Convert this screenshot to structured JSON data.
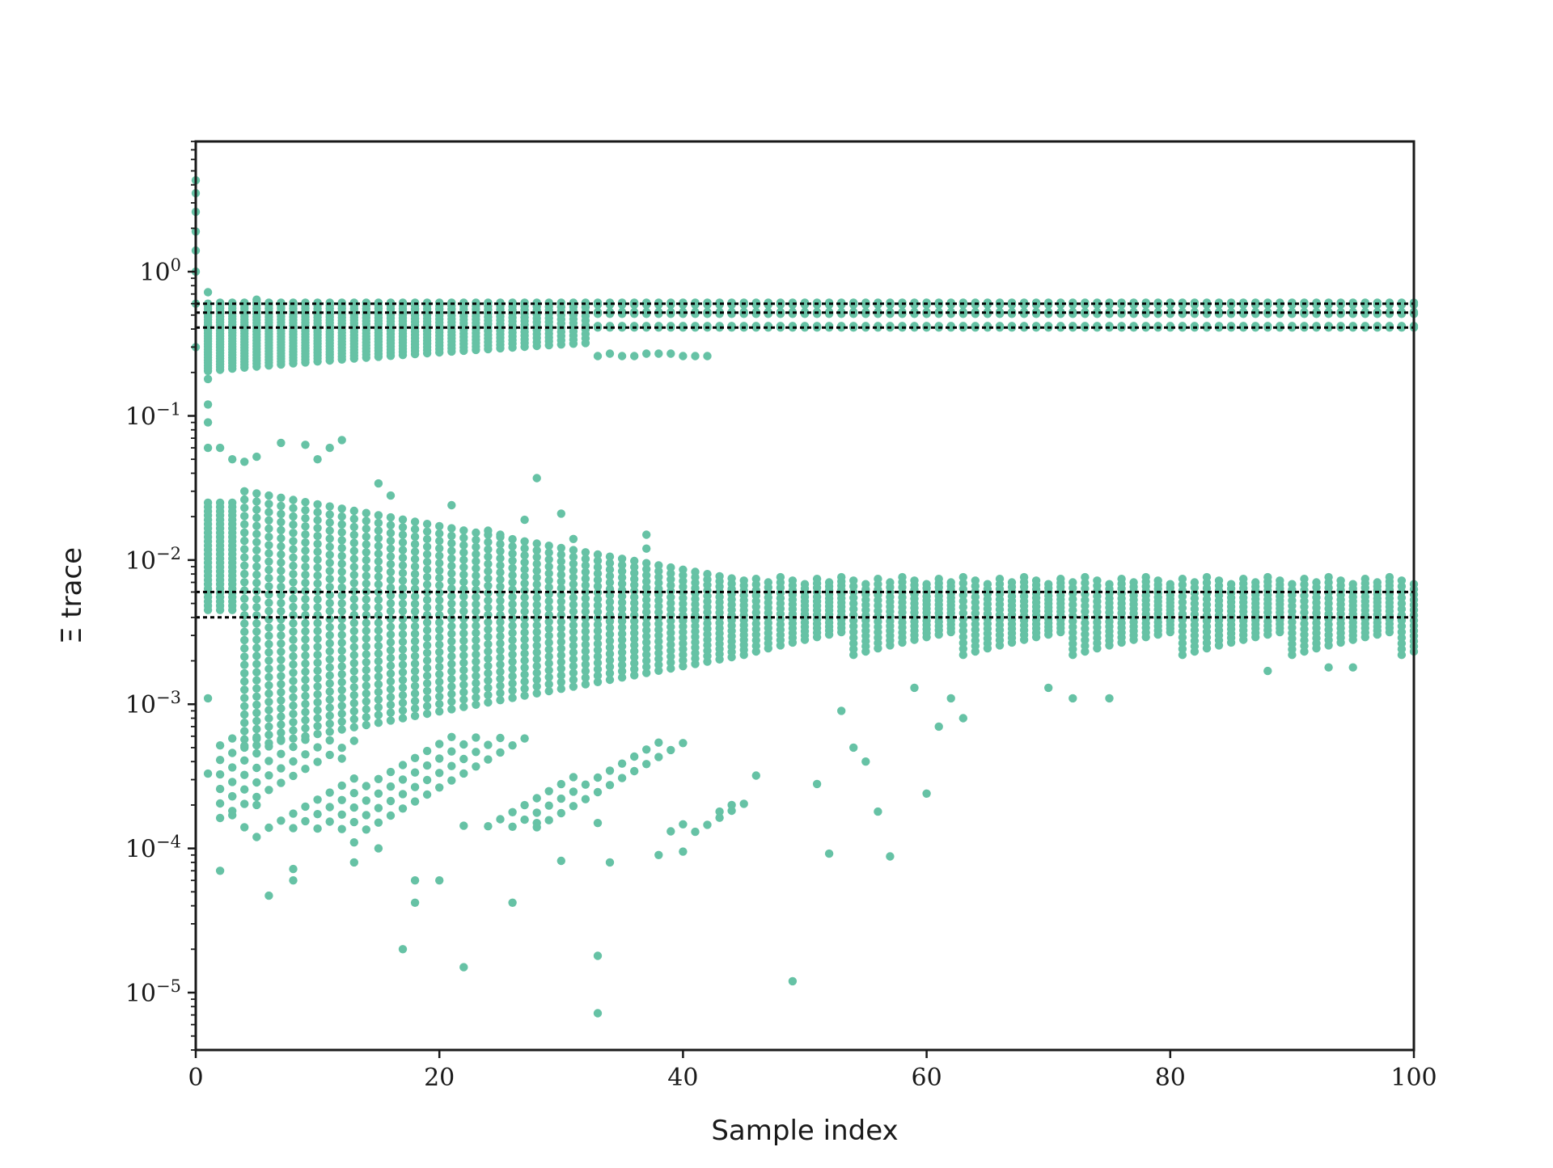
{
  "chart_data": {
    "type": "scatter",
    "xlabel": "Sample index",
    "ylabel": "Ξ trace",
    "xlim": [
      0,
      100
    ],
    "ylim": [
      4e-06,
      8
    ],
    "yscale": "log",
    "grid": false,
    "legend": "none",
    "marker_color": "#66c2a5",
    "reference_line_color": "#000000",
    "xticks": [
      {
        "value": 0,
        "label": "0"
      },
      {
        "value": 20,
        "label": "20"
      },
      {
        "value": 40,
        "label": "40"
      },
      {
        "value": 60,
        "label": "60"
      },
      {
        "value": 80,
        "label": "80"
      },
      {
        "value": 100,
        "label": "100"
      }
    ],
    "yticks": [
      {
        "value": 1,
        "base": "10",
        "exp": "0"
      },
      {
        "value": 0.1,
        "base": "10",
        "exp": "−1"
      },
      {
        "value": 0.01,
        "base": "10",
        "exp": "−2"
      },
      {
        "value": 0.001,
        "base": "10",
        "exp": "−3"
      },
      {
        "value": 0.0001,
        "base": "10",
        "exp": "−4"
      },
      {
        "value": 1e-05,
        "base": "10",
        "exp": "−5"
      }
    ],
    "reference_lines": [
      0.6,
      0.52,
      0.41,
      0.006,
      0.004
    ],
    "series": [
      {
        "description": "upper band envelope per sample index",
        "x_range": [
          1,
          100
        ],
        "points": [
          [
            0,
            4.3
          ],
          [
            0,
            3.5
          ],
          [
            0,
            2.6
          ],
          [
            0,
            1.9
          ],
          [
            0,
            1.4
          ],
          [
            0,
            1.0
          ],
          [
            0,
            0.6
          ],
          [
            0,
            0.3
          ],
          [
            1,
            0.72
          ],
          [
            1,
            0.18
          ],
          [
            33,
            0.26
          ],
          [
            34,
            0.27
          ],
          [
            35,
            0.26
          ],
          [
            36,
            0.26
          ],
          [
            37,
            0.27
          ],
          [
            38,
            0.27
          ],
          [
            39,
            0.27
          ],
          [
            40,
            0.26
          ],
          [
            41,
            0.26
          ],
          [
            42,
            0.26
          ]
        ]
      },
      {
        "description": "lower band outliers",
        "points": [
          [
            1,
            0.12
          ],
          [
            1,
            0.09
          ],
          [
            1,
            0.06
          ],
          [
            1,
            0.0011
          ],
          [
            1,
            0.00033
          ],
          [
            2,
            0.06
          ],
          [
            2,
            7e-05
          ],
          [
            3,
            0.05
          ],
          [
            3,
            0.00023
          ],
          [
            3,
            0.00017
          ],
          [
            4,
            0.048
          ],
          [
            5,
            0.052
          ],
          [
            5,
            0.0002
          ],
          [
            5,
            0.00012
          ],
          [
            6,
            4.7e-05
          ],
          [
            7,
            0.065
          ],
          [
            8,
            7.2e-05
          ],
          [
            8,
            6e-05
          ],
          [
            9,
            0.063
          ],
          [
            10,
            0.05
          ],
          [
            11,
            0.06
          ],
          [
            12,
            0.068
          ],
          [
            12,
            0.00042
          ],
          [
            13,
            8e-05
          ],
          [
            13,
            0.00011
          ],
          [
            15,
            0.034
          ],
          [
            15,
            0.0001
          ],
          [
            16,
            0.028
          ],
          [
            17,
            2e-05
          ],
          [
            18,
            6e-05
          ],
          [
            18,
            4.2e-05
          ],
          [
            20,
            6e-05
          ],
          [
            21,
            0.024
          ],
          [
            22,
            1.5e-05
          ],
          [
            24,
            0.016
          ],
          [
            25,
            0.015
          ],
          [
            26,
            4.2e-05
          ],
          [
            27,
            0.019
          ],
          [
            28,
            0.037
          ],
          [
            28,
            0.00015
          ],
          [
            30,
            0.021
          ],
          [
            30,
            8.2e-05
          ],
          [
            31,
            0.014
          ],
          [
            33,
            1.8e-05
          ],
          [
            33,
            7.2e-06
          ],
          [
            33,
            0.00015
          ],
          [
            34,
            8e-05
          ],
          [
            37,
            0.015
          ],
          [
            37,
            0.012
          ],
          [
            38,
            9e-05
          ],
          [
            40,
            9.5e-05
          ],
          [
            43,
            0.00018
          ],
          [
            44,
            0.0002
          ],
          [
            46,
            0.00032
          ],
          [
            49,
            1.2e-05
          ],
          [
            51,
            0.00028
          ],
          [
            52,
            9.2e-05
          ],
          [
            53,
            0.0009
          ],
          [
            54,
            0.0005
          ],
          [
            55,
            0.0004
          ],
          [
            56,
            0.00018
          ],
          [
            57,
            8.8e-05
          ],
          [
            59,
            0.0013
          ],
          [
            60,
            0.00024
          ],
          [
            61,
            0.0007
          ],
          [
            62,
            0.0011
          ],
          [
            63,
            0.0008
          ],
          [
            70,
            0.0013
          ],
          [
            72,
            0.0011
          ],
          [
            75,
            0.0011
          ],
          [
            88,
            0.0017
          ],
          [
            93,
            0.0018
          ],
          [
            95,
            0.0018
          ]
        ]
      }
    ]
  }
}
